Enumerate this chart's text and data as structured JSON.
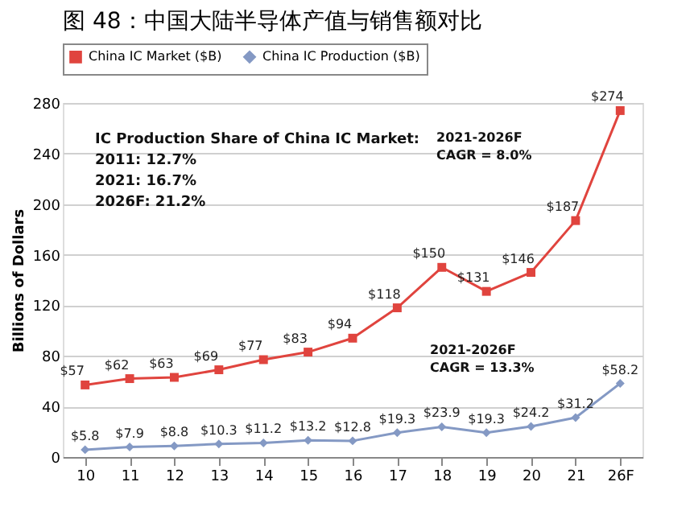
{
  "chart_data": {
    "type": "line",
    "title": "图 48：中国大陆半导体产值与销售额对比",
    "ylabel": "Billions of Dollars",
    "categories": [
      "10",
      "11",
      "12",
      "13",
      "14",
      "15",
      "16",
      "17",
      "18",
      "19",
      "20",
      "21",
      "26F"
    ],
    "series": [
      {
        "name": "China IC Market ($B)",
        "color": "#e0443e",
        "marker": "square",
        "values": [
          57,
          62,
          63,
          69,
          77,
          83,
          94,
          118,
          150,
          131,
          146,
          187,
          274
        ],
        "value_labels": [
          "$57",
          "$62",
          "$63",
          "$69",
          "$77",
          "$83",
          "$94",
          "$118",
          "$150",
          "$131",
          "$146",
          "$187",
          "$274"
        ]
      },
      {
        "name": "China IC Production ($B)",
        "color": "#8499c4",
        "marker": "diamond",
        "values": [
          5.8,
          7.9,
          8.8,
          10.3,
          11.2,
          13.2,
          12.8,
          19.3,
          23.9,
          19.3,
          24.2,
          31.2,
          58.2
        ],
        "value_labels": [
          "$5.8",
          "$7.9",
          "$8.8",
          "$10.3",
          "$11.2",
          "$13.2",
          "$12.8",
          "$19.3",
          "$23.9",
          "$19.3",
          "$24.2",
          "$31.2",
          "$58.2"
        ]
      }
    ],
    "ylim": [
      0,
      280
    ],
    "yticks": [
      0,
      40,
      80,
      120,
      160,
      200,
      240,
      280
    ],
    "grid": "y",
    "legend": "top",
    "line_style": "solid",
    "annotations": [
      "IC Production Share of China IC Market:",
      "2011: 12.7%",
      "2021: 16.7%",
      "2026F: 21.2%",
      "2021-2026F\nCAGR = 8.0%",
      "2021-2026F\nCAGR = 13.3%"
    ]
  }
}
